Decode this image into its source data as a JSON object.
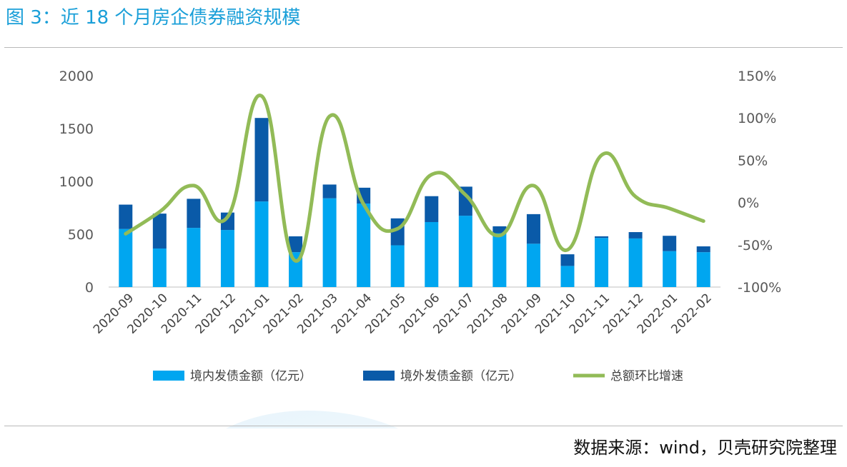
{
  "header": {
    "title": "图 3：近 18 个月房企债券融资规模"
  },
  "footer": {
    "source": "数据来源：wind，贝壳研究院整理"
  },
  "colors": {
    "domestic": "#00a6f0",
    "overseas": "#0a5aa8",
    "growth": "#92bb57",
    "title": "#1a9fd8"
  },
  "chart_data": {
    "type": "bar",
    "stacked": true,
    "title": "",
    "categories": [
      "2020-09",
      "2020-10",
      "2020-11",
      "2020-12",
      "2021-01",
      "2021-02",
      "2021-03",
      "2021-04",
      "2021-05",
      "2021-06",
      "2021-07",
      "2021-08",
      "2021-09",
      "2021-10",
      "2021-11",
      "2021-12",
      "2022-01",
      "2022-02"
    ],
    "series": [
      {
        "name": "境内发债金额（亿元）",
        "type": "bar",
        "axis": "left",
        "values": [
          550,
          365,
          560,
          540,
          810,
          330,
          840,
          790,
          395,
          615,
          675,
          510,
          410,
          200,
          465,
          460,
          340,
          330
        ]
      },
      {
        "name": "境外发债金额（亿元）",
        "type": "bar",
        "axis": "left",
        "values": [
          230,
          330,
          275,
          165,
          790,
          150,
          130,
          150,
          255,
          245,
          275,
          65,
          280,
          110,
          15,
          60,
          145,
          55
        ]
      },
      {
        "name": "总额环比增速",
        "type": "line",
        "axis": "right",
        "unit": "%",
        "values": [
          -37,
          -11,
          20,
          -17,
          126,
          -69,
          102,
          -2,
          -31,
          33,
          9,
          -39,
          20,
          -56,
          56,
          7,
          -7,
          -22
        ]
      }
    ],
    "y_left": {
      "ylim": [
        0,
        2000
      ],
      "ticks": [
        "0",
        "500",
        "1000",
        "1500",
        "2000"
      ]
    },
    "y_right": {
      "ylim": [
        -100,
        150
      ],
      "ticks": [
        "-100%",
        "-50%",
        "0%",
        "50%",
        "100%",
        "150%"
      ]
    },
    "grid": false,
    "legend": "bottom"
  }
}
